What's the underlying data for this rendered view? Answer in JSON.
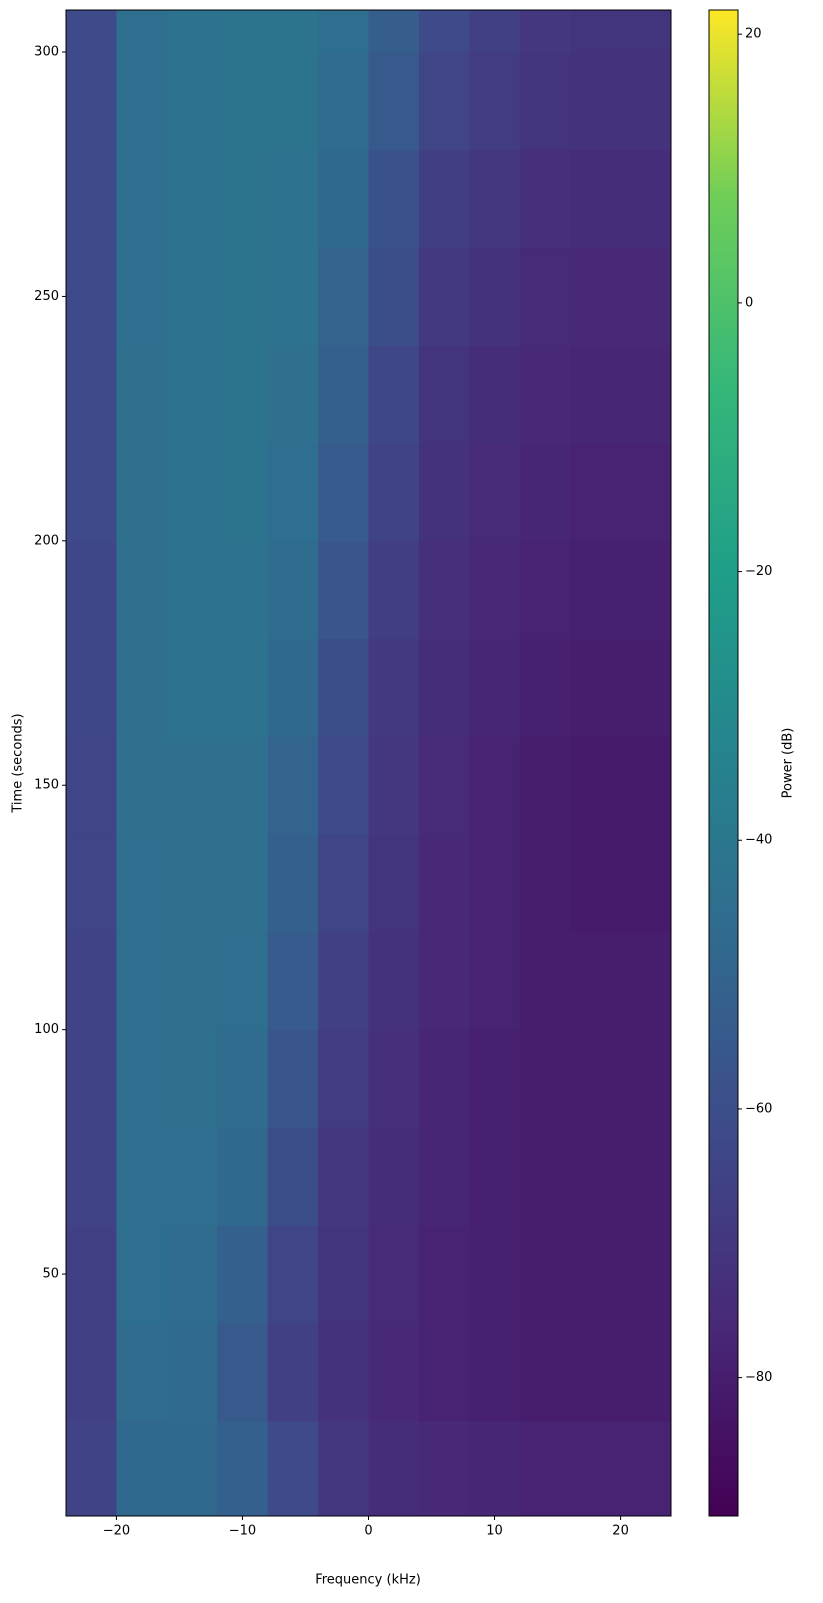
{
  "chart_data": {
    "type": "heatmap",
    "xlabel": "Frequency (kHz)",
    "ylabel": "Time (seconds)",
    "colorbar_label": "Power (dB)",
    "colormap": "viridis",
    "x": [
      -22,
      -18,
      -14,
      -10,
      -6,
      -2,
      2,
      6,
      10,
      14,
      18,
      22
    ],
    "y": [
      10,
      30,
      50,
      70,
      90,
      110,
      130,
      150,
      170,
      190,
      210,
      230,
      250,
      270,
      290,
      310
    ],
    "z": [
      [
        -65,
        -48,
        -48,
        -52,
        -62,
        -70,
        -74,
        -76,
        -77,
        -78,
        -78,
        -78
      ],
      [
        -66,
        -46,
        -47,
        -55,
        -66,
        -72,
        -76,
        -78,
        -79,
        -80,
        -80,
        -80
      ],
      [
        -66,
        -45,
        -46,
        -52,
        -64,
        -71,
        -75,
        -78,
        -79,
        -80,
        -80,
        -80
      ],
      [
        -65,
        -45,
        -45,
        -48,
        -60,
        -70,
        -74,
        -77,
        -79,
        -80,
        -80,
        -80
      ],
      [
        -65,
        -45,
        -44,
        -46,
        -57,
        -68,
        -73,
        -77,
        -79,
        -80,
        -80,
        -80
      ],
      [
        -65,
        -45,
        -44,
        -45,
        -54,
        -66,
        -72,
        -76,
        -78,
        -80,
        -80,
        -80
      ],
      [
        -64,
        -45,
        -44,
        -44,
        -52,
        -64,
        -71,
        -76,
        -78,
        -80,
        -81,
        -81
      ],
      [
        -64,
        -44,
        -44,
        -44,
        -50,
        -62,
        -70,
        -75,
        -78,
        -80,
        -81,
        -81
      ],
      [
        -63,
        -44,
        -43,
        -43,
        -48,
        -60,
        -69,
        -74,
        -77,
        -79,
        -80,
        -80
      ],
      [
        -63,
        -44,
        -43,
        -43,
        -46,
        -57,
        -67,
        -73,
        -76,
        -78,
        -79,
        -79
      ],
      [
        -62,
        -44,
        -43,
        -42,
        -45,
        -54,
        -65,
        -72,
        -75,
        -77,
        -78,
        -78
      ],
      [
        -62,
        -44,
        -43,
        -42,
        -44,
        -52,
        -63,
        -71,
        -74,
        -76,
        -77,
        -77
      ],
      [
        -62,
        -45,
        -43,
        -42,
        -43,
        -50,
        -60,
        -69,
        -72,
        -75,
        -76,
        -76
      ],
      [
        -62,
        -45,
        -43,
        -42,
        -43,
        -48,
        -58,
        -67,
        -70,
        -73,
        -74,
        -74
      ],
      [
        -62,
        -45,
        -43,
        -42,
        -42,
        -46,
        -55,
        -64,
        -68,
        -71,
        -72,
        -72
      ],
      [
        -62,
        -45,
        -43,
        -42,
        -42,
        -45,
        -53,
        -62,
        -66,
        -70,
        -71,
        -71
      ]
    ],
    "xlim": [
      -24,
      24
    ],
    "ylim": [
      0.5,
      308.6
    ],
    "clim": [
      -90.3,
      21.8
    ],
    "xticks": [
      {
        "value": -20,
        "label": "−20"
      },
      {
        "value": -10,
        "label": "−10"
      },
      0,
      10,
      20
    ],
    "yticks": [
      50,
      100,
      150,
      200,
      250,
      300
    ],
    "cticks": [
      {
        "value": -80,
        "label": "−80"
      },
      {
        "value": -60,
        "label": "−60"
      },
      {
        "value": -40,
        "label": "−40"
      },
      {
        "value": -20,
        "label": "−20"
      },
      0,
      20
    ]
  }
}
